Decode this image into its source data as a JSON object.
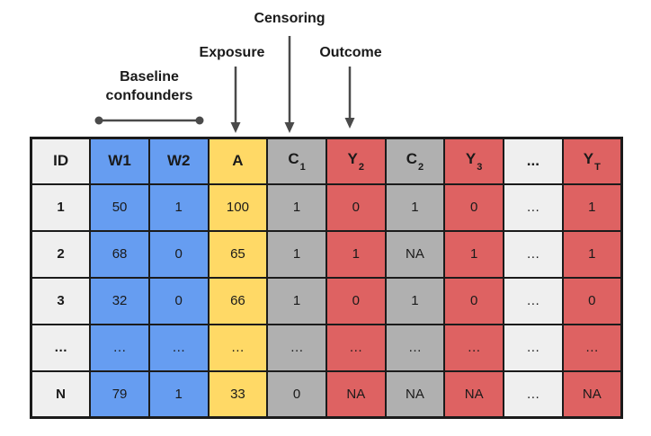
{
  "figure": {
    "background": "#ffffff"
  },
  "annotations": {
    "censoring": "Censoring",
    "exposure": "Exposure",
    "outcome": "Outcome",
    "baseline": "Baseline confounders"
  },
  "colors": {
    "blue": "#669DF1",
    "yellow": "#FFD966",
    "red": "#DE6262",
    "gray": "#B0B0B0",
    "light": "#EFEFEF",
    "border": "#1B1B1B",
    "arrow": "#4A4A4A",
    "text": "#1A1A1A"
  },
  "table": {
    "columns": [
      {
        "label": "ID",
        "sub": "",
        "color": "light"
      },
      {
        "label": "W1",
        "sub": "",
        "color": "blue"
      },
      {
        "label": "W2",
        "sub": "",
        "color": "blue"
      },
      {
        "label": "A",
        "sub": "",
        "color": "yellow"
      },
      {
        "label": "C",
        "sub": "1",
        "color": "gray"
      },
      {
        "label": "Y",
        "sub": "2",
        "color": "red"
      },
      {
        "label": "C",
        "sub": "2",
        "color": "gray"
      },
      {
        "label": "Y",
        "sub": "3",
        "color": "red"
      },
      {
        "label": "...",
        "sub": "",
        "color": "light"
      },
      {
        "label": "Y",
        "sub": "T",
        "color": "red"
      }
    ],
    "rows": [
      [
        "1",
        "50",
        "1",
        "100",
        "1",
        "0",
        "1",
        "0",
        "…",
        "1"
      ],
      [
        "2",
        "68",
        "0",
        "65",
        "1",
        "1",
        "NA",
        "1",
        "…",
        "1"
      ],
      [
        "3",
        "32",
        "0",
        "66",
        "1",
        "0",
        "1",
        "0",
        "…",
        "0"
      ],
      [
        "…",
        "…",
        "…",
        "…",
        "…",
        "…",
        "…",
        "…",
        "…",
        "…"
      ],
      [
        "N",
        "79",
        "1",
        "33",
        "0",
        "NA",
        "NA",
        "NA",
        "…",
        "NA"
      ]
    ]
  }
}
